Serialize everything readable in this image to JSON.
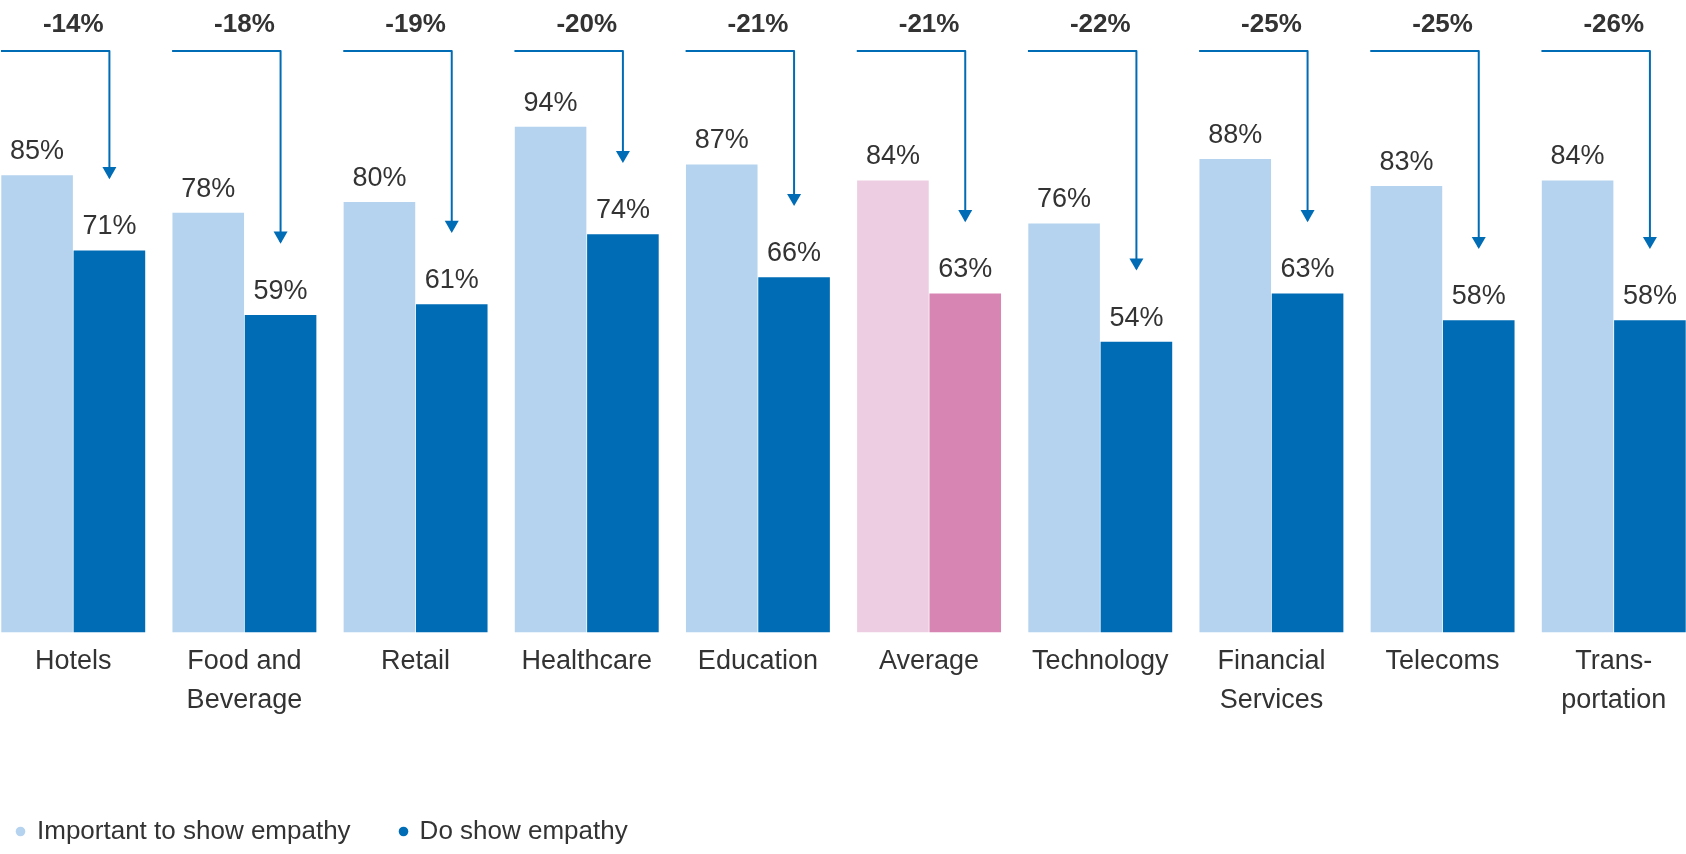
{
  "chart_data": {
    "type": "bar",
    "categories": [
      "Hotels",
      "Food and Beverage",
      "Retail",
      "Healthcare",
      "Education",
      "Average",
      "Technology",
      "Financial Services",
      "Telecoms",
      "Trans-portation"
    ],
    "series": [
      {
        "name": "Important to show empathy",
        "color": "#b5d3ee",
        "colors": [
          "#b5d3ee",
          "#b5d3ee",
          "#b5d3ee",
          "#b5d3ee",
          "#b5d3ee",
          "#eccde2",
          "#b5d3ee",
          "#b5d3ee",
          "#b5d3ee",
          "#b5d3ee"
        ],
        "values": [
          85,
          78,
          80,
          94,
          87,
          84,
          76,
          88,
          83,
          84
        ],
        "value_labels": [
          "85%",
          "78%",
          "80%",
          "94%",
          "87%",
          "84%",
          "76%",
          "88%",
          "83%",
          "84%"
        ]
      },
      {
        "name": "Do show empathy",
        "color": "#006cb5",
        "colors": [
          "#006cb5",
          "#006cb5",
          "#006cb5",
          "#006cb5",
          "#006cb5",
          "#d786b3",
          "#006cb5",
          "#006cb5",
          "#006cb5",
          "#006cb5"
        ],
        "values": [
          71,
          59,
          61,
          74,
          66,
          63,
          54,
          63,
          58,
          58
        ],
        "value_labels": [
          "71%",
          "59%",
          "61%",
          "74%",
          "66%",
          "63%",
          "54%",
          "63%",
          "58%",
          "58%"
        ]
      }
    ],
    "legend": "bottom left",
    "annotations": [
      "-14%",
      "-18%",
      "-19%",
      "-20%",
      "-21%",
      "-21%",
      "-22%",
      "-25%",
      "-25%",
      "-26%"
    ]
  }
}
